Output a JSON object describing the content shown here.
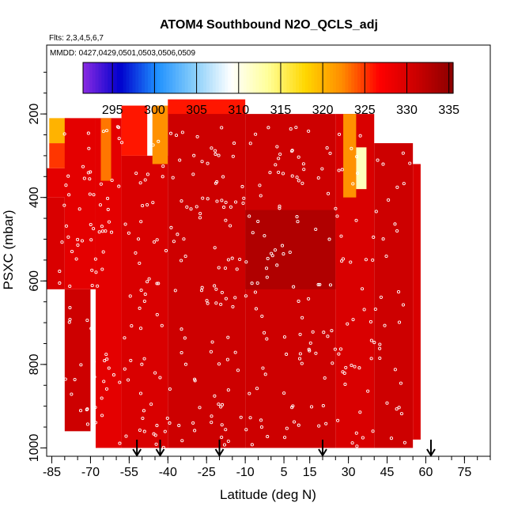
{
  "chart_data": {
    "type": "heatmap",
    "title": "ATOM4 Southbound N2O_QCLS_adj",
    "subtitle_flights": "Flts: 2,3,4,5,6,7",
    "subtitle_dates": "MMDD: 0427,0429,0501,0503,0506,0509",
    "xlabel": "Latitude (deg N)",
    "ylabel": "PSXC (mbar)",
    "xlim": [
      -87,
      85
    ],
    "ylim": [
      1020,
      35
    ],
    "x_ticks": [
      -85,
      -70,
      -55,
      -40,
      -25,
      -10,
      5,
      15,
      30,
      45,
      60,
      75
    ],
    "y_ticks": [
      200,
      400,
      600,
      800,
      1000
    ],
    "colorbar": {
      "min": 291.5,
      "max": 335.5,
      "tick_values": [
        295,
        300,
        305,
        310,
        315,
        320,
        325,
        330,
        335
      ],
      "colors": [
        "#8a2be2",
        "#0000cd",
        "#1e90ff",
        "#87cefa",
        "#ffffff",
        "#ffff99",
        "#ffd700",
        "#ff8c00",
        "#ff0000",
        "#cc0000",
        "#8b0000"
      ]
    },
    "arrows_latitude": [
      -52,
      -43,
      -20,
      20,
      62
    ],
    "regions": [
      {
        "lat": [
          -87,
          -80
        ],
        "p": [
          400,
          620
        ],
        "value": 330
      },
      {
        "lat": [
          -87,
          -78
        ],
        "p": [
          330,
          400
        ],
        "value": 329
      },
      {
        "lat": [
          -86,
          -78
        ],
        "p": [
          270,
          330
        ],
        "value": 325
      },
      {
        "lat": [
          -86,
          -78
        ],
        "p": [
          210,
          270
        ],
        "value": 320
      },
      {
        "lat": [
          -80,
          -70
        ],
        "p": [
          620,
          960
        ],
        "value": 331
      },
      {
        "lat": [
          -80,
          -68
        ],
        "p": [
          210,
          620
        ],
        "value": 329
      },
      {
        "lat": [
          -68,
          -58
        ],
        "p": [
          210,
          1000
        ],
        "value": 329
      },
      {
        "lat": [
          -66,
          -62
        ],
        "p": [
          210,
          360
        ],
        "value": 323
      },
      {
        "lat": [
          -58,
          -40
        ],
        "p": [
          300,
          1000
        ],
        "value": 330
      },
      {
        "lat": [
          -58,
          -48
        ],
        "p": [
          180,
          300
        ],
        "value": 326
      },
      {
        "lat": [
          -46,
          -40
        ],
        "p": [
          180,
          320
        ],
        "value": 322
      },
      {
        "lat": [
          -40,
          -10
        ],
        "p": [
          180,
          1000
        ],
        "value": 331
      },
      {
        "lat": [
          -40,
          -10
        ],
        "p": [
          165,
          200
        ],
        "value": 326
      },
      {
        "lat": [
          -10,
          25
        ],
        "p": [
          200,
          1000
        ],
        "value": 331
      },
      {
        "lat": [
          -10,
          25
        ],
        "p": [
          430,
          620
        ],
        "value": 333
      },
      {
        "lat": [
          25,
          40
        ],
        "p": [
          200,
          1000
        ],
        "value": 330
      },
      {
        "lat": [
          28,
          33
        ],
        "p": [
          200,
          400
        ],
        "value": 322
      },
      {
        "lat": [
          33,
          37
        ],
        "p": [
          280,
          380
        ],
        "value": 312
      },
      {
        "lat": [
          40,
          55
        ],
        "p": [
          270,
          1000
        ],
        "value": 331
      },
      {
        "lat": [
          55,
          58
        ],
        "p": [
          320,
          980
        ],
        "value": 330
      }
    ]
  }
}
